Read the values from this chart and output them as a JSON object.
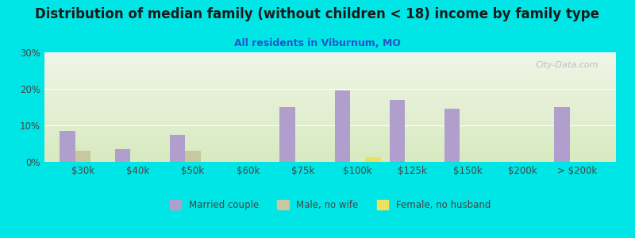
{
  "title": "Distribution of median family (without children < 18) income by family type",
  "subtitle": "All residents in Viburnum, MO",
  "categories": [
    "$30k",
    "$40k",
    "$50k",
    "$60k",
    "$75k",
    "$100k",
    "$125k",
    "$150k",
    "$200k",
    "> $200k"
  ],
  "married_couple": [
    8.5,
    3.5,
    7.5,
    0,
    15,
    19.5,
    17,
    14.5,
    0,
    15
  ],
  "male_no_wife": [
    3.0,
    0,
    3.0,
    0,
    0,
    0,
    0,
    0,
    0,
    0
  ],
  "female_no_husband": [
    0,
    0,
    0,
    0,
    0,
    1.2,
    0,
    0,
    0,
    0
  ],
  "married_color": "#b09fcc",
  "male_color": "#c8c8a0",
  "female_color": "#f0e060",
  "bg_outer": "#00e5e5",
  "bg_chart_top": "#f0f5e8",
  "bg_chart_bottom": "#d8eac0",
  "title_color": "#1a1a1a",
  "subtitle_color": "#2255cc",
  "axis_label_color": "#444444",
  "ylim": [
    0,
    30
  ],
  "yticks": [
    0,
    10,
    20,
    30
  ],
  "ytick_labels": [
    "0%",
    "10%",
    "20%",
    "30%"
  ],
  "bar_width": 0.28,
  "watermark": "City-Data.com",
  "legend_labels": [
    "Married couple",
    "Male, no wife",
    "Female, no husband"
  ]
}
